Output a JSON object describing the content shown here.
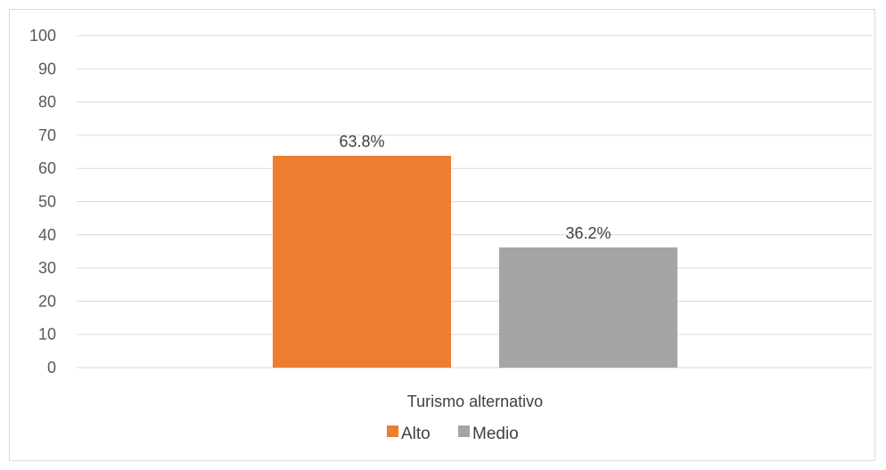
{
  "chart_data": {
    "type": "bar",
    "categories": [
      "Turismo alternativo"
    ],
    "series": [
      {
        "name": "Alto",
        "values": [
          63.8
        ],
        "color": "#ED7D31"
      },
      {
        "name": "Medio",
        "values": [
          36.2
        ],
        "color": "#A5A5A5"
      }
    ],
    "data_labels": [
      "63.8%",
      "36.2%"
    ],
    "ylim": [
      0,
      100
    ],
    "yticks": [
      0,
      10,
      20,
      30,
      40,
      50,
      60,
      70,
      80,
      90,
      100
    ],
    "grid": true,
    "legend_position": "bottom"
  }
}
